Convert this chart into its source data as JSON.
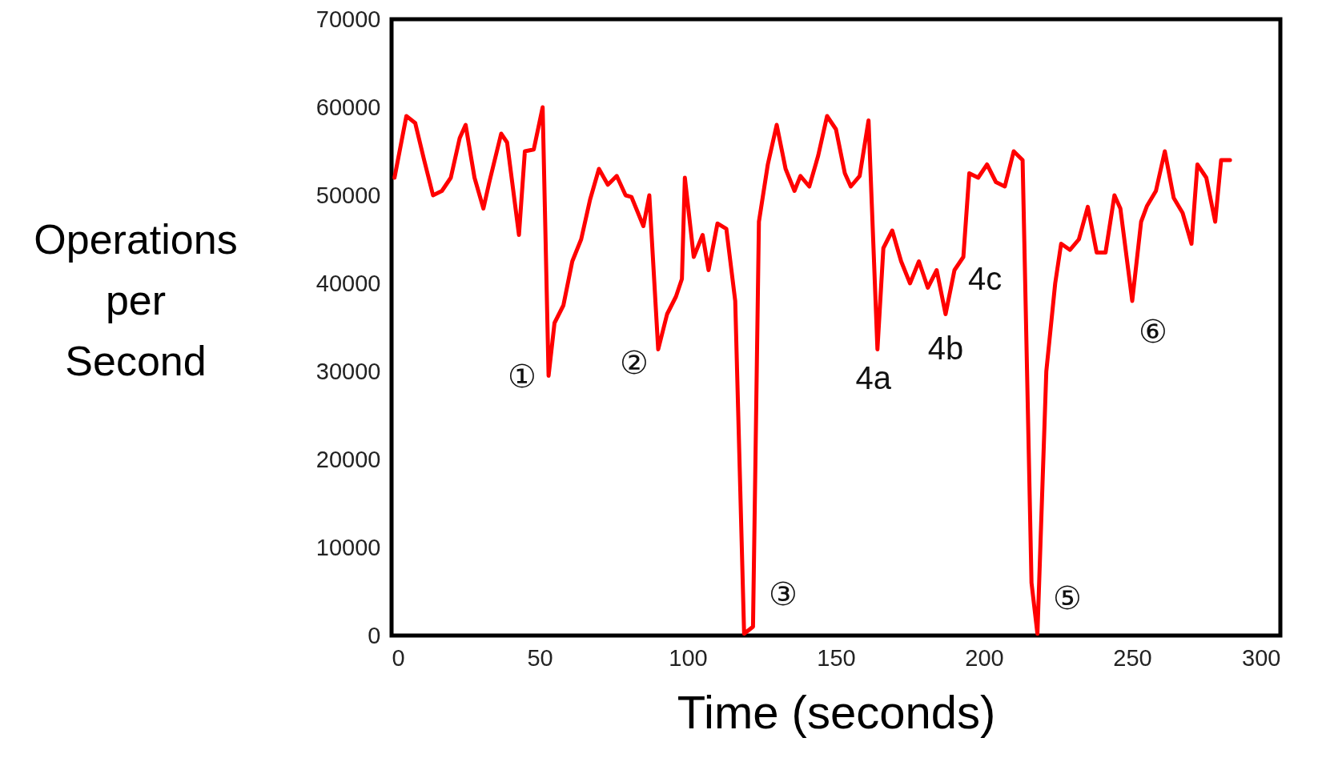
{
  "chart_data": {
    "type": "line",
    "xlabel": "Time (seconds)",
    "ylabel": "Operations per Second",
    "x": [
      1,
      5,
      8,
      11,
      14,
      17,
      20,
      23,
      25,
      28,
      31,
      33,
      37,
      39,
      43,
      45,
      48,
      51,
      53,
      55,
      58,
      61,
      64,
      67,
      70,
      73,
      76,
      79,
      81,
      85,
      87,
      90,
      93,
      96,
      98,
      99,
      102,
      105,
      107,
      110,
      113,
      116,
      119,
      122,
      124,
      127,
      130,
      133,
      136,
      138,
      141,
      144,
      147,
      150,
      153,
      155,
      158,
      161,
      164,
      166,
      169,
      172,
      175,
      178,
      181,
      184,
      187,
      190,
      193,
      195,
      198,
      201,
      204,
      207,
      210,
      213,
      216,
      218,
      221,
      224,
      226,
      229,
      232,
      235,
      238,
      241,
      244,
      246,
      250,
      253,
      255,
      258,
      261,
      264,
      267,
      270,
      272,
      275,
      278,
      280,
      283
    ],
    "series": [
      {
        "color": "#ff0000",
        "values": [
          52000,
          59000,
          58200,
          54000,
          50000,
          50500,
          52000,
          56500,
          58000,
          52000,
          48500,
          51500,
          57000,
          56000,
          45500,
          55000,
          55200,
          60000,
          29500,
          35500,
          37500,
          42500,
          45000,
          49500,
          53000,
          51200,
          52200,
          50000,
          49800,
          46500,
          50000,
          32500,
          36500,
          38500,
          40500,
          52000,
          43000,
          45500,
          41500,
          46800,
          46200,
          38000,
          200,
          1000,
          47000,
          53500,
          58000,
          53000,
          50500,
          52200,
          51000,
          54500,
          59000,
          57500,
          52500,
          51000,
          52200,
          58500,
          32500,
          44000,
          46000,
          42500,
          40000,
          42500,
          39500,
          41500,
          36500,
          41500,
          43000,
          52500,
          52000,
          53500,
          51500,
          51000,
          55000,
          54000,
          6000,
          200,
          30000,
          40000,
          44500,
          43800,
          45000,
          48700,
          43500,
          43500,
          50000,
          48500,
          38000,
          47000,
          48800,
          50500,
          55000,
          49700,
          48000,
          44500,
          53500,
          52000,
          47000,
          54000,
          54000
        ]
      }
    ],
    "xlim": [
      0,
      300
    ],
    "xticks": [
      0,
      50,
      100,
      150,
      200,
      250,
      300
    ],
    "ylim": [
      0,
      70000
    ],
    "yticks": [
      0,
      10000,
      20000,
      30000,
      40000,
      50000,
      60000,
      70000
    ],
    "grid": false,
    "marker": "none",
    "line_style": "solid",
    "annotations": [
      {
        "text": "①",
        "x": 51,
        "y": 29500
      },
      {
        "text": "②",
        "x": 90,
        "y": 32500
      },
      {
        "text": "③",
        "x": 122,
        "y": 1000
      },
      {
        "text": "4a",
        "x": 164,
        "y": 32500
      },
      {
        "text": "4b",
        "x": 187,
        "y": 36500
      },
      {
        "text": "4c",
        "x": 193,
        "y": 43000
      },
      {
        "text": "⑤",
        "x": 218,
        "y": 200
      },
      {
        "text": "⑥",
        "x": 250,
        "y": 38000
      }
    ]
  }
}
